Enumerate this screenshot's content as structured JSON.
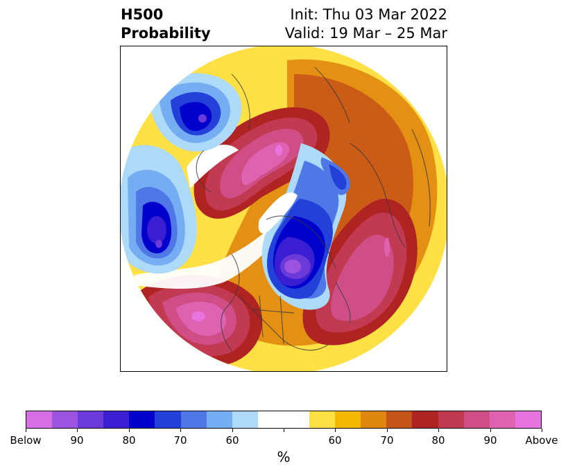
{
  "title": {
    "left_line1": "H500",
    "left_line2": "Probability",
    "right_line1": "Init: Thu 03 Mar 2022",
    "right_line2": "Valid: 19 Mar – 25 Mar"
  },
  "colorbar": {
    "unit": "%",
    "colors": [
      "#d86ee3",
      "#9c53e0",
      "#6b3ad8",
      "#3a1ed1",
      "#0000cd",
      "#2341d8",
      "#4f77e5",
      "#74adf1",
      "#acdaf8",
      "#ffffff",
      "#ffffff",
      "#ffe045",
      "#f5b800",
      "#e0870d",
      "#c55419",
      "#b02323",
      "#c23a52",
      "#cf4e86",
      "#df62b0",
      "#e874e0"
    ],
    "tick_labels": [
      {
        "text": "Below"
      },
      {
        "text": "90"
      },
      {
        "text": "80"
      },
      {
        "text": "70"
      },
      {
        "text": "60"
      },
      {
        "text": ""
      },
      {
        "text": "60"
      },
      {
        "text": "70"
      },
      {
        "text": "80"
      },
      {
        "text": "90"
      },
      {
        "text": "Above"
      }
    ]
  },
  "map": {
    "projection": "north polar stereographic",
    "anomalies": [
      {
        "type": "below",
        "peak": "Below"
      },
      {
        "type": "below",
        "peak": "Below"
      },
      {
        "type": "below",
        "peak": "Below"
      },
      {
        "type": "above",
        "peak": "Above"
      },
      {
        "type": "above",
        "peak": "Above"
      },
      {
        "type": "above",
        "peak": "90"
      }
    ]
  }
}
